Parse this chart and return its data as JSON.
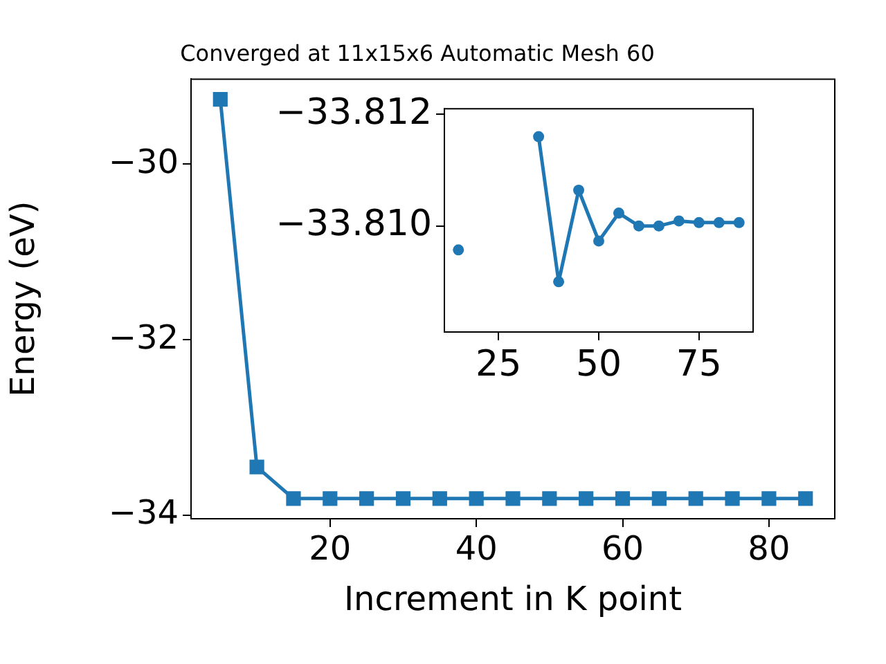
{
  "chart_data": [
    {
      "type": "line",
      "title": "Converged at 11x15x6 Automatic Mesh 60",
      "xlabel": "Increment in K point",
      "ylabel": "Energy (eV)",
      "x": [
        5,
        10,
        15,
        20,
        25,
        30,
        35,
        40,
        45,
        50,
        55,
        60,
        65,
        70,
        75,
        80,
        85
      ],
      "series": [
        {
          "color": "#1f77b4",
          "values": [
            -29.26,
            -33.45,
            -33.81,
            -33.81,
            -33.81,
            -33.81,
            -33.81,
            -33.81,
            -33.81,
            -33.81,
            -33.81,
            -33.81,
            -33.81,
            -33.81,
            -33.81,
            -33.81,
            -33.81
          ]
        }
      ],
      "xlim": [
        1,
        89
      ],
      "xticks": [
        20,
        40,
        60,
        80
      ],
      "ylim": [
        -34.04,
        -29.03
      ],
      "yticks": [
        {
          "value": -30,
          "label": "−30"
        },
        {
          "value": -32,
          "label": "−32"
        },
        {
          "value": -34,
          "label": "−34"
        }
      ],
      "marker": "square",
      "line_style": "solid",
      "grid": false,
      "legend": false
    },
    {
      "type": "line",
      "x": [
        15,
        20,
        25,
        35,
        40,
        45,
        50,
        55,
        60,
        65,
        70,
        75,
        80,
        85
      ],
      "series": [
        {
          "color": "#1f77b4",
          "values": [
            -33.80957,
            null,
            null,
            -33.8116,
            -33.809,
            -33.81064,
            -33.80973,
            -33.81023,
            -33.81,
            -33.81,
            -33.81009,
            -33.81006,
            -33.81006,
            -33.81006
          ]
        }
      ],
      "xlim": [
        11.5,
        88.5
      ],
      "xticks": [
        25,
        50,
        75
      ],
      "ylim": [
        -33.8081,
        -33.8121
      ],
      "yticks": [
        {
          "value": -33.812,
          "label": "−33.812"
        },
        {
          "value": -33.81,
          "label": "−33.810"
        }
      ],
      "marker": "circle",
      "line_style": "solid",
      "grid": false,
      "legend": false
    }
  ]
}
